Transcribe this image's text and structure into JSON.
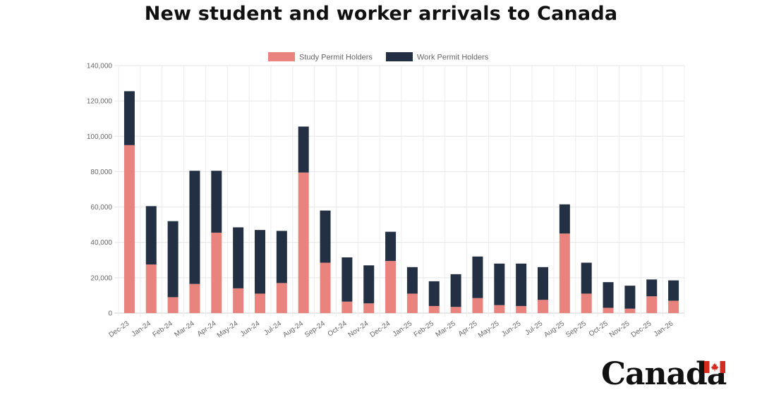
{
  "chart_data": {
    "type": "bar",
    "stacked": true,
    "title": "New student and worker arrivals to Canada",
    "categories": [
      "Dec-23",
      "Jan-24",
      "Feb-24",
      "Mar-24",
      "Apr-24",
      "May-24",
      "Jun-24",
      "Jul-24",
      "Aug-24",
      "Sep-24",
      "Oct-24",
      "Nov-24",
      "Dec-24",
      "Jan-25",
      "Feb-25",
      "Mar-25",
      "Apr-25",
      "May-25",
      "Jun-25",
      "Jul-25",
      "Aug-25",
      "Sep-25",
      "Oct-25",
      "Nov-25",
      "Dec-25",
      "Jan-26"
    ],
    "series": [
      {
        "name": "Study Permit Holders",
        "color": "#e8837d",
        "values": [
          95000,
          27500,
          9000,
          16500,
          45500,
          14000,
          11000,
          17000,
          79500,
          28500,
          6500,
          5500,
          29500,
          11000,
          4000,
          3500,
          8500,
          4500,
          4000,
          7500,
          45000,
          11000,
          3000,
          2500,
          9500,
          7000
        ]
      },
      {
        "name": "Work Permit Holders",
        "color": "#232f43",
        "values": [
          30500,
          33000,
          43000,
          64000,
          35000,
          34500,
          36000,
          29500,
          26000,
          29500,
          25000,
          21500,
          16500,
          15000,
          14000,
          18500,
          23500,
          23500,
          24000,
          18500,
          16500,
          17500,
          14500,
          13000,
          9500,
          11500
        ]
      }
    ],
    "ylim": [
      0,
      140000
    ],
    "yticks": [
      "0",
      "20,000",
      "40,000",
      "60,000",
      "80,000",
      "100,000",
      "120,000",
      "140,000"
    ],
    "ytick_values": [
      0,
      20000,
      40000,
      60000,
      80000,
      100000,
      120000,
      140000
    ],
    "grid": true,
    "legend_position": "top-center"
  },
  "logo": {
    "wordmark": "Canada",
    "flag_colors": [
      "#d52b1e",
      "#ffffff"
    ]
  }
}
